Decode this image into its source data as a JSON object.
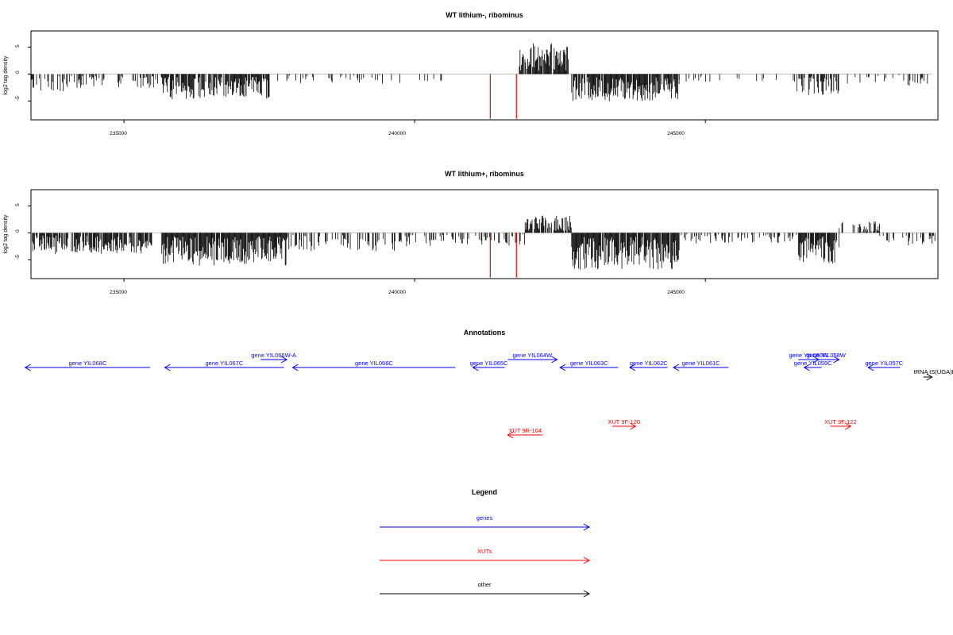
{
  "colors": {
    "gene": "#0000ff",
    "xut": "#ff0000",
    "other": "#000000",
    "bar": "#000000",
    "highlight": "#ff0000",
    "baseline": "#bebebe"
  },
  "chart_data": [
    {
      "type": "bar",
      "title": "WT lithium-, ribominus",
      "ylabel": "log2 tag density",
      "xlim": [
        233400,
        249000
      ],
      "ylim": [
        -8.5,
        8
      ],
      "xticks": [
        "235000",
        "240000",
        "245000"
      ],
      "yticks": [
        "-5",
        "0",
        "5"
      ],
      "grid": false,
      "highlight_positions": [
        241300,
        241750
      ],
      "highlight_values": [
        -8.3,
        -8.3
      ]
    },
    {
      "type": "bar",
      "title": "WT lithium+, ribominus",
      "ylabel": "log2 tag density",
      "xlim": [
        233400,
        249000
      ],
      "ylim": [
        -8.5,
        8
      ],
      "xticks": [
        "235000",
        "240000",
        "245000"
      ],
      "yticks": [
        "-5",
        "0",
        "5"
      ],
      "grid": false,
      "highlight_positions": [
        241300,
        241750
      ],
      "highlight_values": [
        -8.3,
        -8.3
      ]
    }
  ],
  "annotations": {
    "title": "Annotations",
    "features": [
      {
        "label": "gene YIL068C",
        "type": "gene",
        "start": 233300,
        "end": 235450,
        "strand": "-"
      },
      {
        "label": "gene YIL067C",
        "type": "gene",
        "start": 235700,
        "end": 237750,
        "strand": "-"
      },
      {
        "label": "gene YIL066W-A",
        "type": "gene",
        "start": 237350,
        "end": 237800,
        "strand": "+",
        "row": 1
      },
      {
        "label": "gene YIL066C",
        "type": "gene",
        "start": 237900,
        "end": 240700,
        "strand": "-"
      },
      {
        "label": "gene YIL065C",
        "type": "gene",
        "start": 241000,
        "end": 241550,
        "strand": "-"
      },
      {
        "label": "gene YIL064W",
        "type": "gene",
        "start": 241600,
        "end": 242450,
        "strand": "+",
        "row": 1
      },
      {
        "label": "gene YIL063C",
        "type": "gene",
        "start": 242500,
        "end": 243500,
        "strand": "-"
      },
      {
        "label": "gene YIL062C",
        "type": "gene",
        "start": 243700,
        "end": 244350,
        "strand": "-"
      },
      {
        "label": "gene YIL061C",
        "type": "gene",
        "start": 244450,
        "end": 245400,
        "strand": "-"
      },
      {
        "label": "gene YIL060W",
        "type": "gene",
        "start": 246600,
        "end": 246950,
        "strand": "+",
        "row": 1
      },
      {
        "label": "gene YIL058W",
        "type": "gene",
        "start": 246850,
        "end": 247300,
        "strand": "+",
        "row": 1
      },
      {
        "label": "gene YIL059C",
        "type": "gene",
        "start": 246700,
        "end": 247000,
        "strand": "-"
      },
      {
        "label": "gene YIL057C",
        "type": "gene",
        "start": 247800,
        "end": 248350,
        "strand": "-"
      },
      {
        "label": "tRNA tS(UGA)I",
        "type": "other",
        "start": 248750,
        "end": 248900,
        "strand": "+"
      },
      {
        "label": "XUT 9R-104",
        "type": "xut",
        "start": 241600,
        "end": 242200,
        "strand": "-"
      },
      {
        "label": "XUT 9F-120",
        "type": "xut",
        "start": 243400,
        "end": 243800,
        "strand": "+"
      },
      {
        "label": "XUT 9F-122",
        "type": "xut",
        "start": 247150,
        "end": 247500,
        "strand": "+"
      }
    ]
  },
  "legend": {
    "title": "Legend",
    "items": [
      {
        "label": "genes",
        "type": "gene"
      },
      {
        "label": "XUTs",
        "type": "xut"
      },
      {
        "label": "other",
        "type": "other"
      }
    ]
  }
}
